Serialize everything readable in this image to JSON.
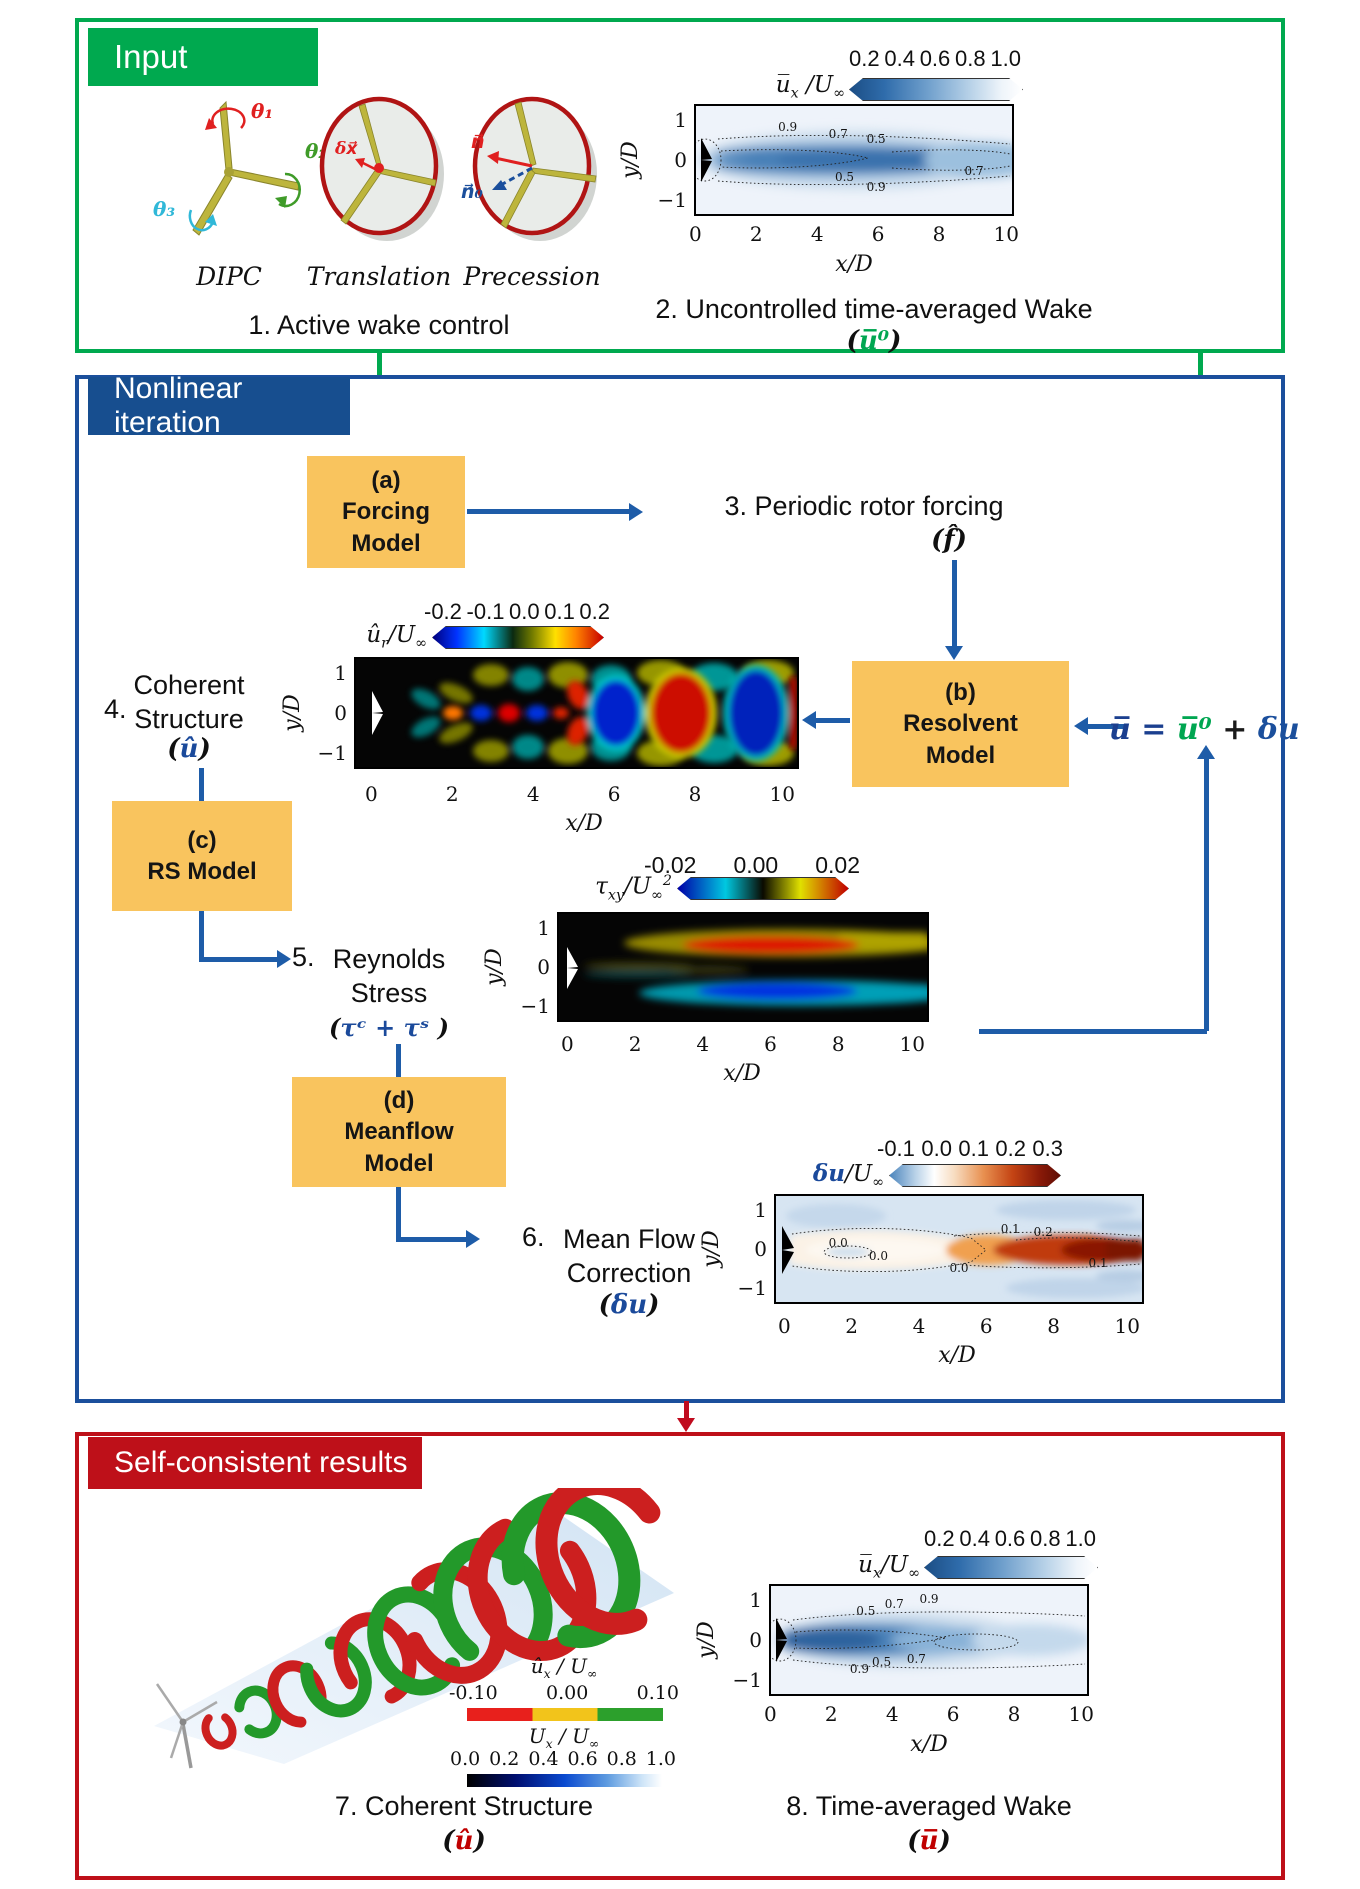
{
  "colors": {
    "green_accent": "#00A94F",
    "blue_border": "#1B4F9C",
    "red_accent": "#BE1019",
    "orange_box": "#F9C45E",
    "arrow_blue": "#1E5CA8"
  },
  "sections": {
    "input_label": "Input",
    "iteration_label": "Nonlinear iteration",
    "results_label": "Self-consistent results"
  },
  "input": {
    "turbine_names": [
      "DIPC",
      "Translation",
      "Precession"
    ],
    "theta_labels": [
      "θ₁",
      "θ₂",
      "θ₃"
    ],
    "dx_label": "δx⃗",
    "n_label": "n⃗",
    "n0_label": "n⃗₀",
    "caption1": "1. Active wake control",
    "caption2": "2. Uncontrolled time-averaged Wake",
    "caption2_math": {
      "open": "(",
      "core": "u̅⁰",
      "close": ")"
    }
  },
  "iteration": {
    "box_a": [
      "(a)",
      "Forcing",
      "Model"
    ],
    "box_b": [
      "(b)",
      "Resolvent",
      "Model"
    ],
    "box_c": [
      "(c)",
      "RS Model"
    ],
    "box_d": [
      "(d)",
      "Meanflow",
      "Model"
    ],
    "step3_text": "3.  Periodic rotor forcing",
    "step3_math": {
      "open": "(",
      "core": "f̂",
      "close": ")"
    },
    "step4": {
      "num": "4.",
      "line1": "Coherent",
      "line2": "Structure",
      "math": {
        "open": "(",
        "core": "û",
        "close": ")"
      }
    },
    "step5": {
      "num": "5.",
      "line1": "Reynolds",
      "line2": "Stress",
      "math": {
        "open": "(",
        "core": "τᶜ + τˢ ",
        "close": ")"
      }
    },
    "step6": {
      "num": "6.",
      "line1": "Mean Flow",
      "line2": "Correction",
      "math": {
        "open": "(",
        "core": "δu",
        "close": ")"
      }
    },
    "equation": {
      "lhs": "u̅",
      "rel": "=",
      "rhs1": "u̅⁰",
      "op": "+",
      "rhs2": "δu"
    }
  },
  "results": {
    "caption7": "7. Coherent Structure",
    "caption7_math": {
      "open": "(",
      "core": "û",
      "close": ")"
    },
    "caption8": "8. Time-averaged Wake",
    "caption8_math": {
      "open": "(",
      "core": "u̅",
      "close": ")"
    }
  },
  "charts": {
    "wake_top": {
      "type": "heatmap",
      "colorbar_ticks": [
        "0.2",
        "0.4",
        "0.6",
        "0.8",
        "1.0"
      ],
      "colorbar_label": {
        "base": "u̅",
        "sub": "x",
        "mid": " /U",
        "inf": "∞"
      },
      "x_ticks": [
        "0",
        "2",
        "4",
        "6",
        "8",
        "10"
      ],
      "y_ticks": [
        "1",
        "0",
        "−1"
      ],
      "xlabel": "x/D",
      "ylabel": "y/D",
      "contours_top": [
        "0.9",
        "0.7",
        "0.5"
      ],
      "contours_bottom": [
        "0.5",
        "0.9",
        "0.7"
      ]
    },
    "coherent": {
      "type": "heatmap",
      "colorbar_ticks": [
        "-0.2",
        "-0.1",
        "0.0",
        "0.1",
        "0.2"
      ],
      "colorbar_label": {
        "base": "û",
        "sub": "r",
        "mid": "/U",
        "inf": "∞"
      },
      "x_ticks": [
        "0",
        "2",
        "4",
        "6",
        "8",
        "10"
      ],
      "y_ticks": [
        "1",
        "0",
        "−1"
      ],
      "xlabel": "x/D",
      "ylabel": "y/D"
    },
    "stress": {
      "type": "heatmap",
      "colorbar_ticks": [
        "-0.02",
        "0.00",
        "0.02"
      ],
      "colorbar_label": {
        "base": "τ",
        "sub": "xy",
        "mid": "/U",
        "inf": "∞",
        "sup": "2"
      },
      "x_ticks": [
        "0",
        "2",
        "4",
        "6",
        "8",
        "10"
      ],
      "y_ticks": [
        "1",
        "0",
        "−1"
      ],
      "xlabel": "x/D",
      "ylabel": "y/D"
    },
    "correction": {
      "type": "heatmap",
      "colorbar_ticks": [
        "-0.1",
        "0.0",
        "0.1",
        "0.2",
        "0.3"
      ],
      "colorbar_label": {
        "base": "δu",
        "mid": "/U",
        "inf": "∞"
      },
      "x_ticks": [
        "0",
        "2",
        "4",
        "6",
        "8",
        "10"
      ],
      "y_ticks": [
        "1",
        "0",
        "−1"
      ],
      "xlabel": "x/D",
      "ylabel": "y/D",
      "contour_labels": [
        "0.0",
        "0.0",
        "0.0",
        "0.1",
        "0.2",
        "0.1"
      ]
    },
    "helix": {
      "type": "3d-isosurface",
      "cb1_label": {
        "base": "û",
        "sub": "x",
        "mid": " / U",
        "inf": "∞"
      },
      "cb1_ticks": [
        "-0.10",
        "0.00",
        "0.10"
      ],
      "cb1_colors": [
        "#E8201C",
        "#F2C41B",
        "#2CA02C"
      ],
      "cb2_label": {
        "base": "U",
        "sub": "x",
        "mid": " / U",
        "inf": "∞"
      },
      "cb2_ticks": [
        "0.0",
        "0.2",
        "0.4",
        "0.6",
        "0.8",
        "1.0"
      ]
    },
    "wake_bottom": {
      "type": "heatmap",
      "colorbar_ticks": [
        "0.2",
        "0.4",
        "0.6",
        "0.8",
        "1.0"
      ],
      "colorbar_label": {
        "base": "u̅",
        "sub": "x",
        "mid": "/U",
        "inf": "∞"
      },
      "x_ticks": [
        "0",
        "2",
        "4",
        "6",
        "8",
        "10"
      ],
      "y_ticks": [
        "1",
        "0",
        "−1"
      ],
      "xlabel": "x/D",
      "ylabel": "y/D",
      "contours_top": [
        "0.5",
        "0.7",
        "0.9"
      ],
      "contours_bottom": [
        "0.9",
        "0.5",
        "0.7"
      ]
    }
  }
}
